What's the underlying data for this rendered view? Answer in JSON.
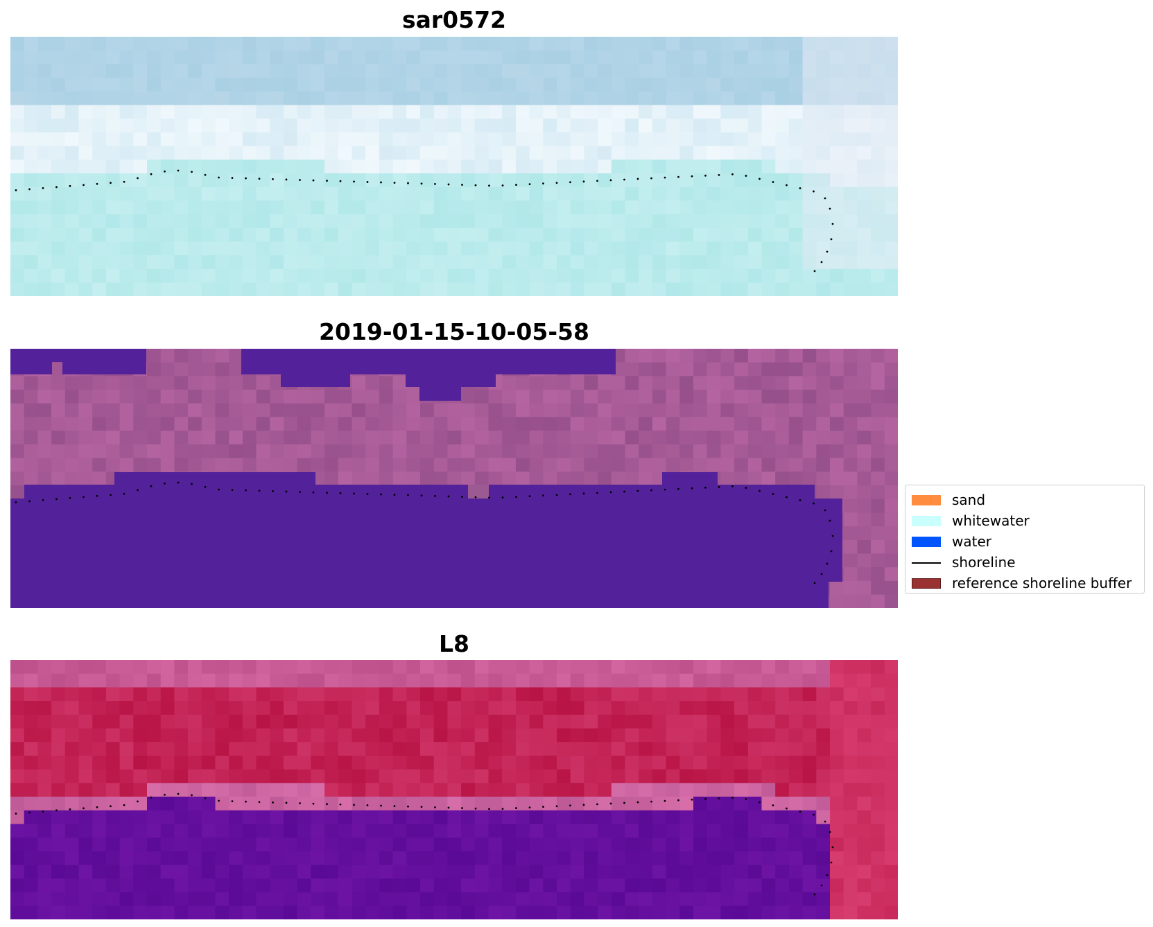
{
  "panels": [
    {
      "id": "sar",
      "title": "sar0572",
      "palette": "sar"
    },
    {
      "id": "class",
      "title": "2019-01-15-10-05-58",
      "palette": "class"
    },
    {
      "id": "l8",
      "title": "L8",
      "palette": "l8"
    }
  ],
  "legend": {
    "items": [
      {
        "label": "sand",
        "color": "#ff8c3f",
        "kind": "patch"
      },
      {
        "label": "whitewater",
        "color": "#c9fffd",
        "kind": "patch"
      },
      {
        "label": "water",
        "color": "#0055ff",
        "kind": "patch"
      },
      {
        "label": "shoreline",
        "color": "#000000",
        "kind": "line"
      },
      {
        "label": "reference shoreline buffer",
        "color": "#9b3232",
        "kind": "patch"
      }
    ]
  }
}
